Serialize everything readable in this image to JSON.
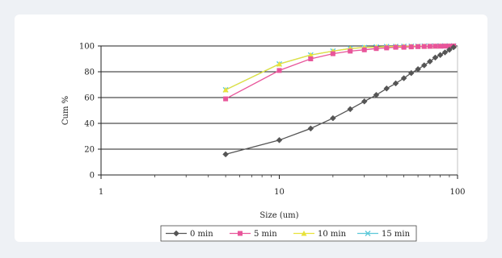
{
  "chart_data": {
    "type": "line",
    "title": "",
    "xlabel": "Size (um)",
    "ylabel": "Cum %",
    "x_scale": "log",
    "xlim": [
      1,
      100
    ],
    "ylim": [
      0,
      100
    ],
    "x_ticks": [
      1,
      10,
      100
    ],
    "x_tick_labels": [
      "1",
      "10",
      "100"
    ],
    "y_ticks": [
      0,
      20,
      40,
      60,
      80,
      100
    ],
    "y_tick_labels": [
      "0",
      "20",
      "40",
      "60",
      "80",
      "100"
    ],
    "grid": "horizontal",
    "legend_position": "bottom",
    "series": [
      {
        "name": "0 min",
        "color": "#555555",
        "marker": "diamond",
        "x": [
          5,
          10,
          15,
          20,
          25,
          30,
          35,
          40,
          45,
          50,
          55,
          60,
          65,
          70,
          75,
          80,
          85,
          90,
          95
        ],
        "y": [
          16,
          27,
          36,
          44,
          51,
          57,
          62,
          67,
          71,
          75,
          79,
          82,
          85,
          88,
          91,
          93,
          95,
          97,
          99
        ]
      },
      {
        "name": "5 min",
        "color": "#e8559a",
        "marker": "square",
        "x": [
          5,
          10,
          15,
          20,
          25,
          30,
          35,
          40,
          45,
          50,
          55,
          60,
          65,
          70,
          75,
          80,
          85,
          90,
          95
        ],
        "y": [
          59,
          81,
          90,
          94,
          96,
          97,
          98,
          98.5,
          99,
          99,
          99.3,
          99.5,
          99.6,
          99.7,
          99.8,
          99.8,
          99.9,
          99.9,
          100
        ]
      },
      {
        "name": "10 min",
        "color": "#e8e23a",
        "marker": "triangle",
        "x": [
          5,
          10,
          15,
          20,
          25,
          30,
          35,
          40,
          45,
          50,
          55,
          60,
          65,
          70,
          75,
          80,
          85,
          90,
          95
        ],
        "y": [
          66,
          86,
          93,
          96,
          98,
          98.8,
          99.2,
          99.5,
          99.6,
          99.7,
          99.8,
          99.8,
          99.9,
          99.9,
          99.9,
          100,
          100,
          100,
          100
        ]
      },
      {
        "name": "15 min",
        "color": "#5cc8d8",
        "marker": "x",
        "x": [
          5,
          10,
          15,
          20,
          25,
          30,
          35,
          40,
          45,
          50,
          55,
          60,
          65,
          70,
          75,
          80,
          85,
          90,
          95
        ],
        "y": [
          66,
          86,
          93,
          96,
          98,
          98.8,
          99.2,
          99.5,
          99.6,
          99.7,
          99.8,
          99.8,
          99.9,
          99.9,
          99.9,
          100,
          100,
          100,
          100
        ]
      }
    ]
  }
}
